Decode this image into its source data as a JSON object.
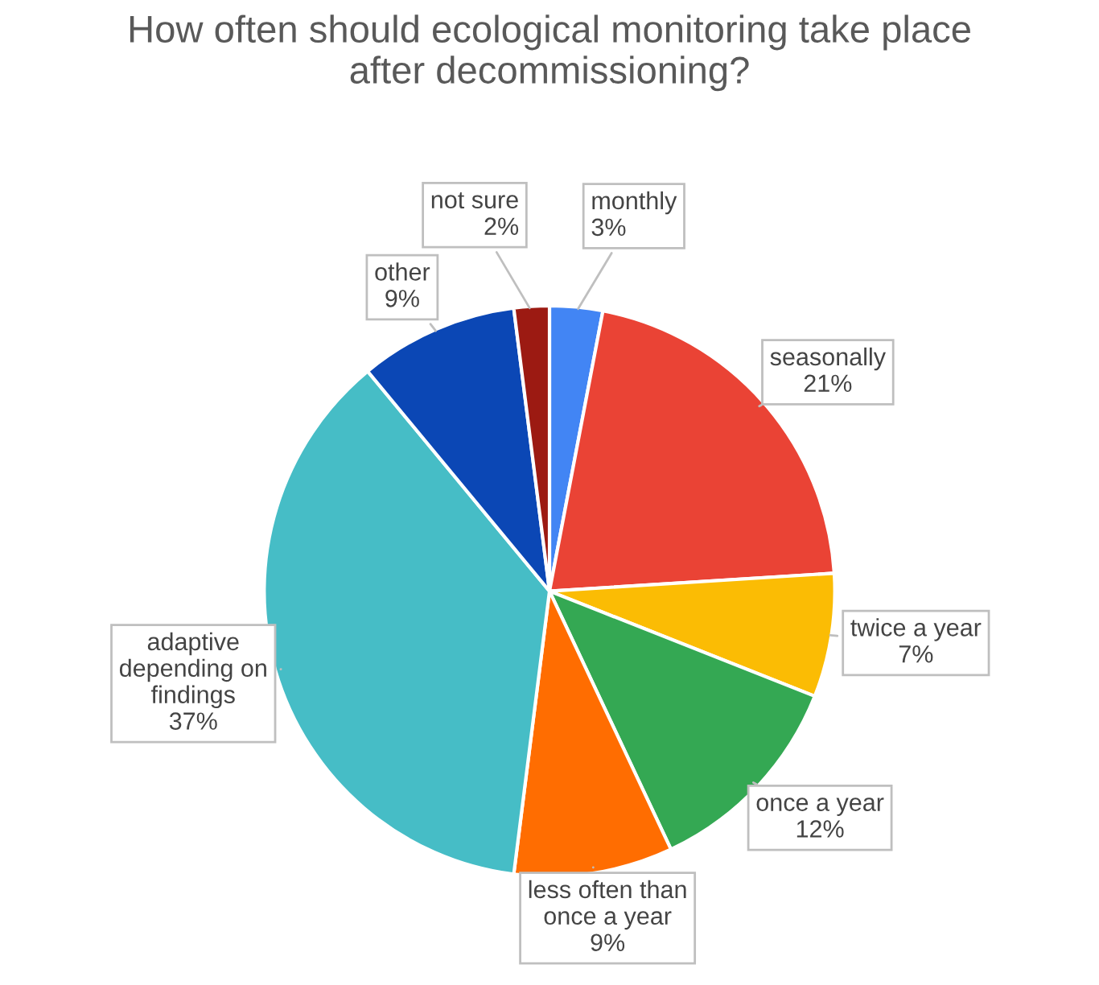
{
  "chart_data": {
    "type": "pie",
    "title": "How often should ecological monitoring take place\nafter decommissioning?",
    "categories": [
      "monthly",
      "seasonally",
      "twice a year",
      "once a year",
      "less often than\nonce a year",
      "adaptive\ndepending on\nfindings",
      "other",
      "not sure"
    ],
    "values": [
      3,
      21,
      7,
      12,
      9,
      37,
      9,
      2
    ],
    "value_labels": [
      "3%",
      "21%",
      "7%",
      "12%",
      "9%",
      "37%",
      "9%",
      "2%"
    ],
    "colors": [
      "#4285f4",
      "#ea4335",
      "#fbbc04",
      "#34a853",
      "#ff6d01",
      "#46bdc6",
      "#0b47b5",
      "#9c1a12"
    ]
  }
}
